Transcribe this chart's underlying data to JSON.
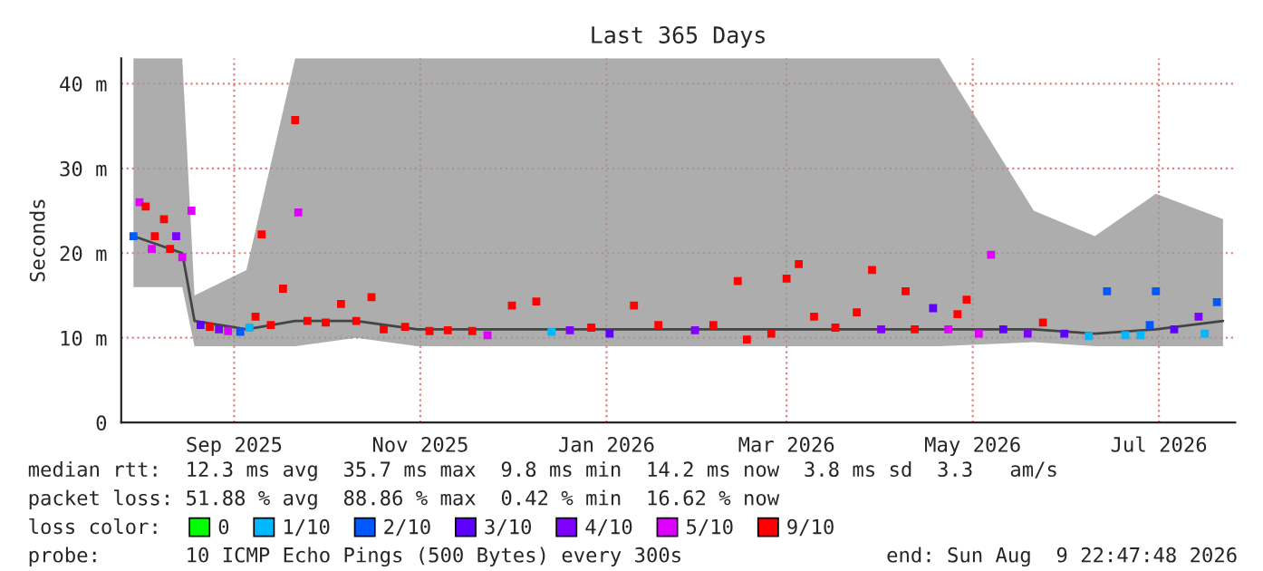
{
  "chart_data": {
    "type": "scatter",
    "title": "Last 365 Days",
    "ylabel": "Seconds",
    "legend_title": "loss color:",
    "legend": "bottom",
    "grid": true,
    "marker": "square",
    "xlim": [
      "2025-08-10",
      "2026-08-10"
    ],
    "xticks": [
      {
        "value": "2025-09-16",
        "label": "Sep 2025"
      },
      {
        "value": "2025-11-16",
        "label": "Nov 2025"
      },
      {
        "value": "2026-01-16",
        "label": "Jan 2026"
      },
      {
        "value": "2026-03-16",
        "label": "Mar 2026"
      },
      {
        "value": "2026-05-16",
        "label": "May 2026"
      },
      {
        "value": "2026-07-16",
        "label": "Jul 2026"
      }
    ],
    "ylim": [
      0,
      43
    ],
    "yticks": [
      0,
      {
        "value": 10,
        "label": "10 m"
      },
      {
        "value": 20,
        "label": "20 m"
      },
      {
        "value": 30,
        "label": "30 m"
      },
      {
        "value": 40,
        "label": "40 m"
      }
    ],
    "series": [
      {
        "type": "line",
        "marker": "none",
        "color": "#444444",
        "x": [
          "2025-08-14",
          "2025-08-30",
          "2025-09-03",
          "2025-09-20",
          "2025-10-06",
          "2025-10-26",
          "2025-11-15",
          "2025-12-10",
          "2026-01-05",
          "2026-02-05",
          "2026-03-05",
          "2026-04-05",
          "2026-05-05",
          "2026-06-05",
          "2026-06-25",
          "2026-07-15",
          "2026-08-06"
        ],
        "values": [
          22,
          20,
          12,
          11,
          12,
          12,
          11,
          11,
          11,
          11,
          11,
          11,
          11,
          11,
          10.5,
          11,
          12
        ],
        "lower": [
          16,
          16,
          9,
          9,
          9,
          10,
          9,
          9,
          9,
          9,
          9,
          9,
          9,
          9.5,
          9,
          9,
          9
        ],
        "upper": [
          43,
          43,
          15,
          18,
          43,
          43,
          43,
          43,
          43,
          43,
          43,
          43,
          43,
          25,
          22,
          27,
          24
        ]
      },
      {
        "name": "0",
        "color": "#00ff00"
      },
      {
        "name": "1/10",
        "color": "#00b8ff",
        "x": [
          "2025-09-21",
          "2025-12-29",
          "2026-06-23",
          "2026-07-05",
          "2026-07-10",
          "2026-07-31"
        ],
        "values": [
          11.2,
          10.7,
          10.2,
          10.3,
          10.3,
          10.5
        ]
      },
      {
        "name": "2/10",
        "color": "#0059ff",
        "x": [
          "2025-08-14",
          "2025-09-18",
          "2026-06-29",
          "2026-07-13",
          "2026-07-15",
          "2026-08-04"
        ],
        "values": [
          22,
          10.7,
          15.5,
          11.5,
          15.5,
          14.2
        ]
      },
      {
        "name": "3/10",
        "color": "#5e00ff",
        "x": [
          "2025-09-05",
          "2026-01-17",
          "2026-05-03",
          "2026-05-26",
          "2026-06-15",
          "2026-07-21"
        ],
        "values": [
          11.5,
          10.5,
          13.5,
          11.0,
          10.5,
          11.0
        ]
      },
      {
        "name": "4/10",
        "color": "#7e00ff",
        "x": [
          "2025-08-28",
          "2025-09-11",
          "2026-01-04",
          "2026-02-14",
          "2026-04-16",
          "2026-06-03",
          "2026-07-29"
        ],
        "values": [
          22,
          11.0,
          10.9,
          10.9,
          11.0,
          10.5,
          12.5
        ]
      },
      {
        "name": "5/10",
        "color": "#dd00ff",
        "x": [
          "2025-08-16",
          "2025-08-20",
          "2025-08-30",
          "2025-09-02",
          "2025-09-14",
          "2025-10-07",
          "2025-12-08",
          "2026-05-08",
          "2026-05-18",
          "2026-05-22"
        ],
        "values": [
          26,
          20.5,
          19.5,
          25,
          10.8,
          24.8,
          10.3,
          11.0,
          10.5,
          19.8
        ]
      },
      {
        "name": "9/10",
        "color": "#ff0000",
        "x": [
          "2025-08-18",
          "2025-08-21",
          "2025-08-24",
          "2025-08-26",
          "2025-09-08",
          "2025-09-23",
          "2025-09-25",
          "2025-09-28",
          "2025-10-02",
          "2025-10-06",
          "2025-10-10",
          "2025-10-16",
          "2025-10-21",
          "2025-10-26",
          "2025-10-31",
          "2025-11-04",
          "2025-11-11",
          "2025-11-19",
          "2025-11-25",
          "2025-12-03",
          "2025-12-16",
          "2025-12-24",
          "2026-01-11",
          "2026-01-25",
          "2026-02-02",
          "2026-02-20",
          "2026-02-28",
          "2026-03-03",
          "2026-03-11",
          "2026-03-16",
          "2026-03-20",
          "2026-03-25",
          "2026-04-01",
          "2026-04-08",
          "2026-04-13",
          "2026-04-24",
          "2026-04-27",
          "2026-05-11",
          "2026-05-14",
          "2026-06-08"
        ],
        "values": [
          25.5,
          22,
          24,
          20.5,
          11.3,
          12.5,
          22.2,
          11.5,
          15.8,
          35.7,
          12,
          11.8,
          14,
          12,
          14.8,
          11.0,
          11.3,
          10.8,
          10.9,
          10.8,
          13.8,
          14.3,
          11.2,
          13.8,
          11.5,
          11.5,
          16.7,
          9.8,
          10.5,
          17.0,
          18.7,
          12.5,
          11.2,
          13.0,
          18.0,
          15.5,
          11.0,
          12.8,
          14.5,
          11.8
        ]
      }
    ],
    "annotations": [
      "median rtt:  12.3 ms avg  35.7 ms max  9.8 ms min  14.2 ms now  3.8 ms sd  3.3   am/s",
      "packet loss: 51.88 % avg  88.86 % max  0.42 % min  16.62 % now",
      "probe:       10 ICMP Echo Pings (500 Bytes) every 300s",
      "end: Sun Aug  9 22:47:48 2026"
    ]
  }
}
